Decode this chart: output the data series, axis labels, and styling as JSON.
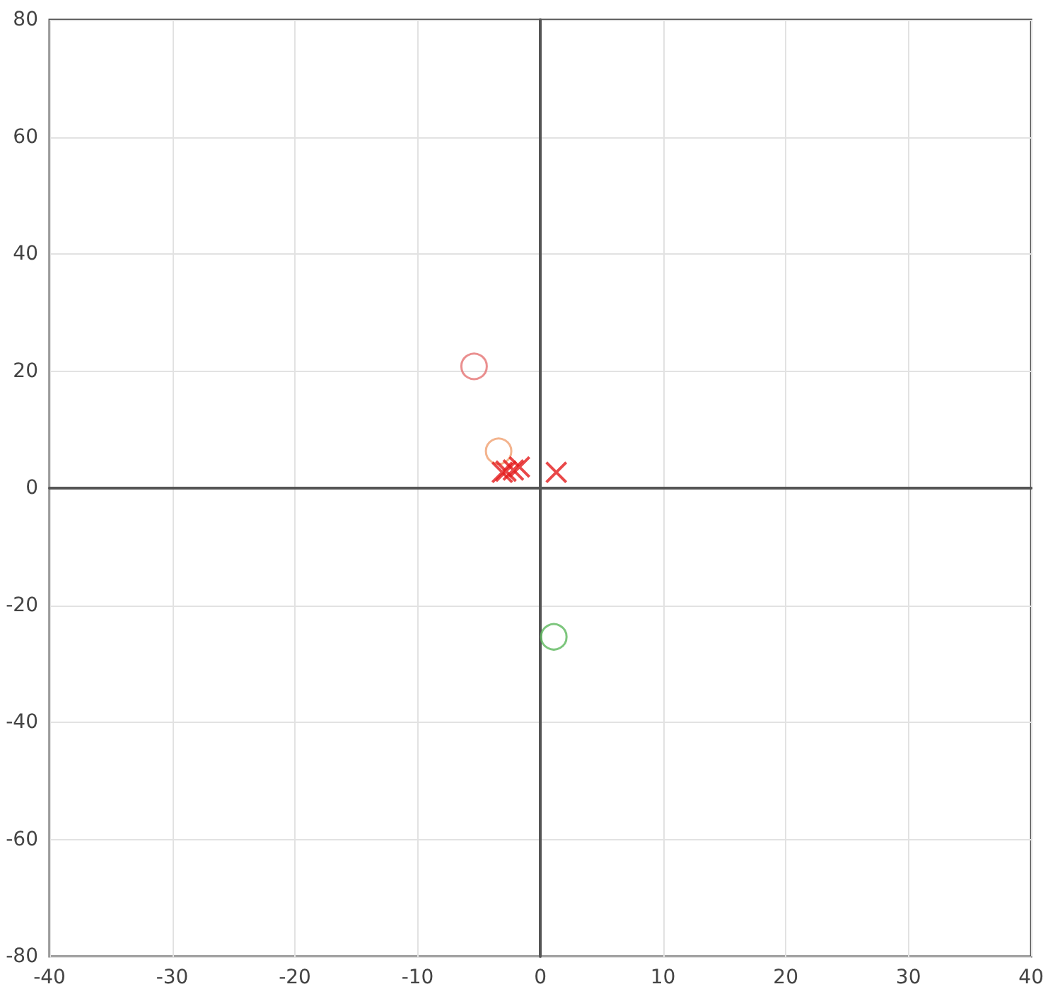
{
  "chart_data": {
    "type": "scatter",
    "xlim": [
      -40,
      40
    ],
    "ylim": [
      -80,
      80
    ],
    "xticks": [
      -40,
      -30,
      -20,
      -10,
      0,
      10,
      20,
      30,
      40
    ],
    "yticks": [
      -80,
      -60,
      -40,
      -20,
      0,
      20,
      40,
      60,
      80
    ],
    "grid": true,
    "series": [
      {
        "marker": "circle",
        "x": [
          -5.4,
          -3.4,
          1.1
        ],
        "values": [
          20.8,
          6.3,
          -25.4
        ],
        "colors": [
          "#e57373",
          "#f0a070",
          "#5cb85c"
        ]
      },
      {
        "marker": "cross",
        "color": "#e31a1c",
        "x": [
          -3.1,
          -2.8,
          -2.2,
          -1.7,
          1.3
        ],
        "values": [
          2.7,
          2.9,
          3.1,
          3.6,
          2.7
        ]
      }
    ]
  }
}
